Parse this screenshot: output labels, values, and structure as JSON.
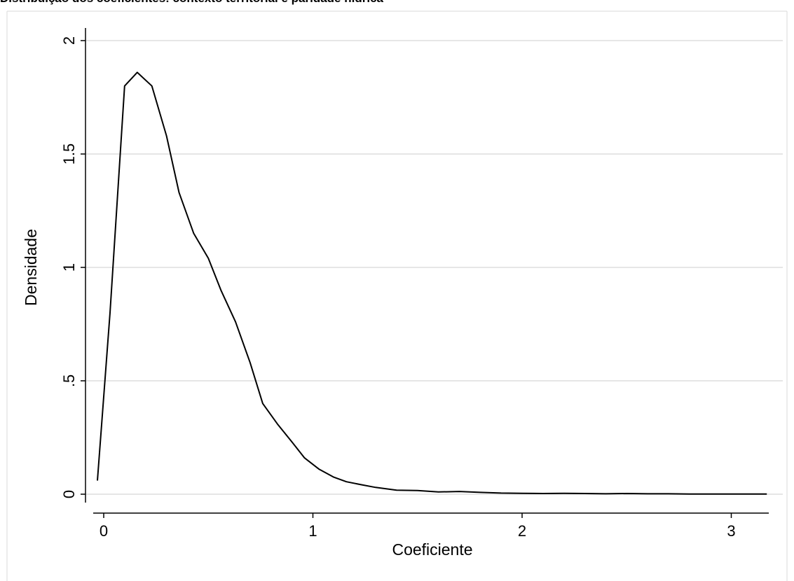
{
  "chart_data": {
    "type": "line",
    "title": "Distribuição dos coeficientes: contexto territorial e paridade hídrica",
    "xlabel": "Coeficiente",
    "ylabel": "Densidade",
    "xlim": [
      -0.05,
      3.25
    ],
    "ylim": [
      0,
      2.05
    ],
    "x_ticks": [
      0,
      1,
      2,
      3
    ],
    "x_tick_labels": [
      "0",
      "1",
      "2",
      "3"
    ],
    "y_ticks": [
      0,
      0.5,
      1,
      1.5,
      2
    ],
    "y_tick_labels": [
      "0",
      ".5",
      "1",
      "1.5",
      "2"
    ],
    "grid": "horizontal",
    "legend": "none",
    "colors": {
      "line": "#000000",
      "grid": "#e6e6e6",
      "axis": "#000000",
      "frame": "#d9d9d9"
    },
    "series": [
      {
        "x": [
          -0.03,
          0.03,
          0.1,
          0.16,
          0.23,
          0.3,
          0.36,
          0.43,
          0.5,
          0.56,
          0.63,
          0.7,
          0.76,
          0.83,
          0.9,
          0.96,
          1.03,
          1.1,
          1.16,
          1.23,
          1.3,
          1.4,
          1.5,
          1.6,
          1.7,
          1.8,
          1.9,
          2.0,
          2.1,
          2.2,
          2.3,
          2.4,
          2.5,
          2.6,
          2.7,
          2.8,
          2.9,
          3.0,
          3.1,
          3.17
        ],
        "y": [
          0.06,
          0.8,
          1.8,
          1.86,
          1.8,
          1.58,
          1.33,
          1.15,
          1.04,
          0.9,
          0.76,
          0.58,
          0.4,
          0.31,
          0.23,
          0.16,
          0.11,
          0.075,
          0.055,
          0.042,
          0.03,
          0.018,
          0.016,
          0.01,
          0.012,
          0.008,
          0.005,
          0.004,
          0.003,
          0.004,
          0.003,
          0.002,
          0.003,
          0.002,
          0.002,
          0.001,
          0.001,
          0.001,
          0.001,
          0.001
        ]
      }
    ]
  }
}
